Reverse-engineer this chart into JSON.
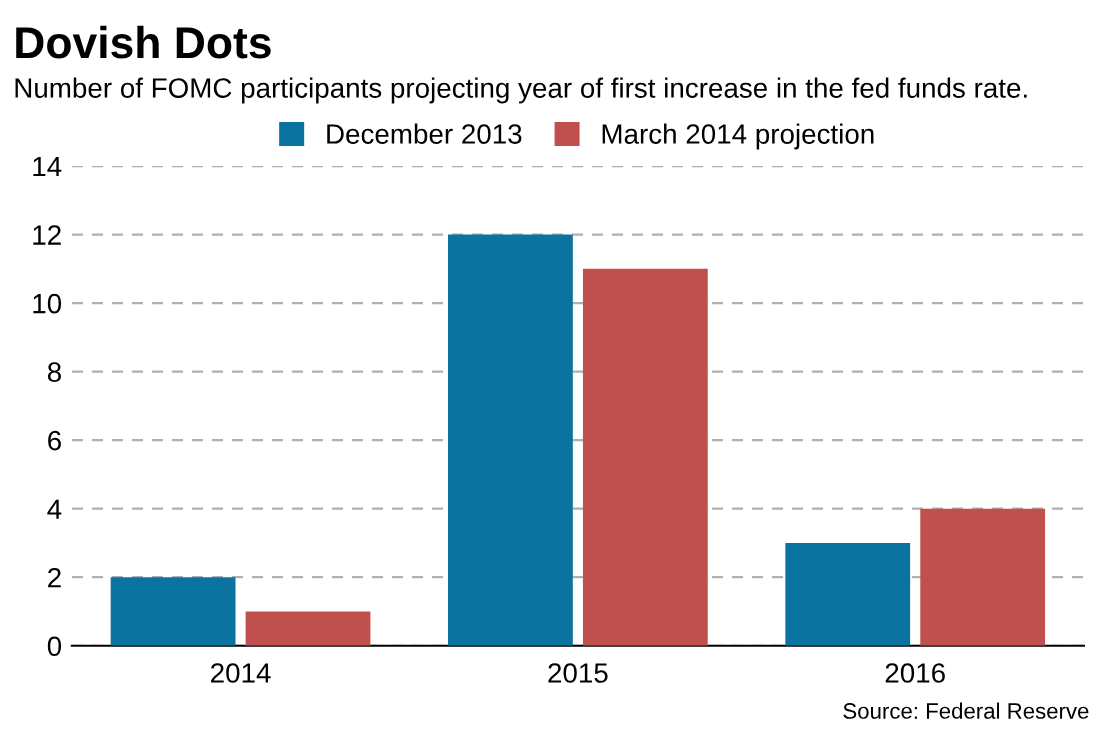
{
  "chart_data": {
    "type": "bar",
    "title": "Dovish Dots",
    "subtitle": "Number of FOMC participants projecting year of first increase in the fed funds rate.",
    "categories": [
      "2014",
      "2015",
      "2016"
    ],
    "series": [
      {
        "name": "December 2013",
        "color": "#0a73a0",
        "values": [
          2,
          12,
          3
        ]
      },
      {
        "name": "March 2014 projection",
        "color": "#c0504d",
        "values": [
          1,
          11,
          4
        ]
      }
    ],
    "ylim": [
      0,
      14
    ],
    "yticks": [
      0,
      2,
      4,
      6,
      8,
      10,
      12,
      14
    ],
    "grid": "y",
    "legend": "top",
    "annotations": [
      "Source: Federal Reserve"
    ]
  }
}
